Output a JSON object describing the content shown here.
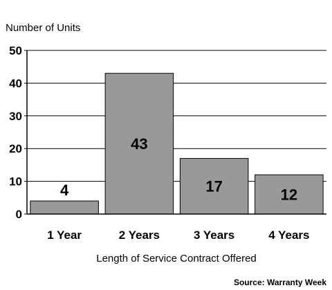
{
  "chart_data": {
    "type": "bar",
    "ylabel": "Number of Units",
    "xlabel": "Length of Service Contract Offered",
    "source": "Source: Warranty Week",
    "categories": [
      "1 Year",
      "2 Years",
      "3 Years",
      "4 Years"
    ],
    "values": [
      4,
      43,
      17,
      12
    ],
    "data_labels": [
      "4",
      "43",
      "17",
      "12"
    ],
    "ylim": [
      0,
      50
    ],
    "yticks": [
      0,
      10,
      20,
      30,
      40,
      50
    ],
    "grid": true,
    "bar_color": "#999999",
    "bar_edge_color": "#000000"
  }
}
